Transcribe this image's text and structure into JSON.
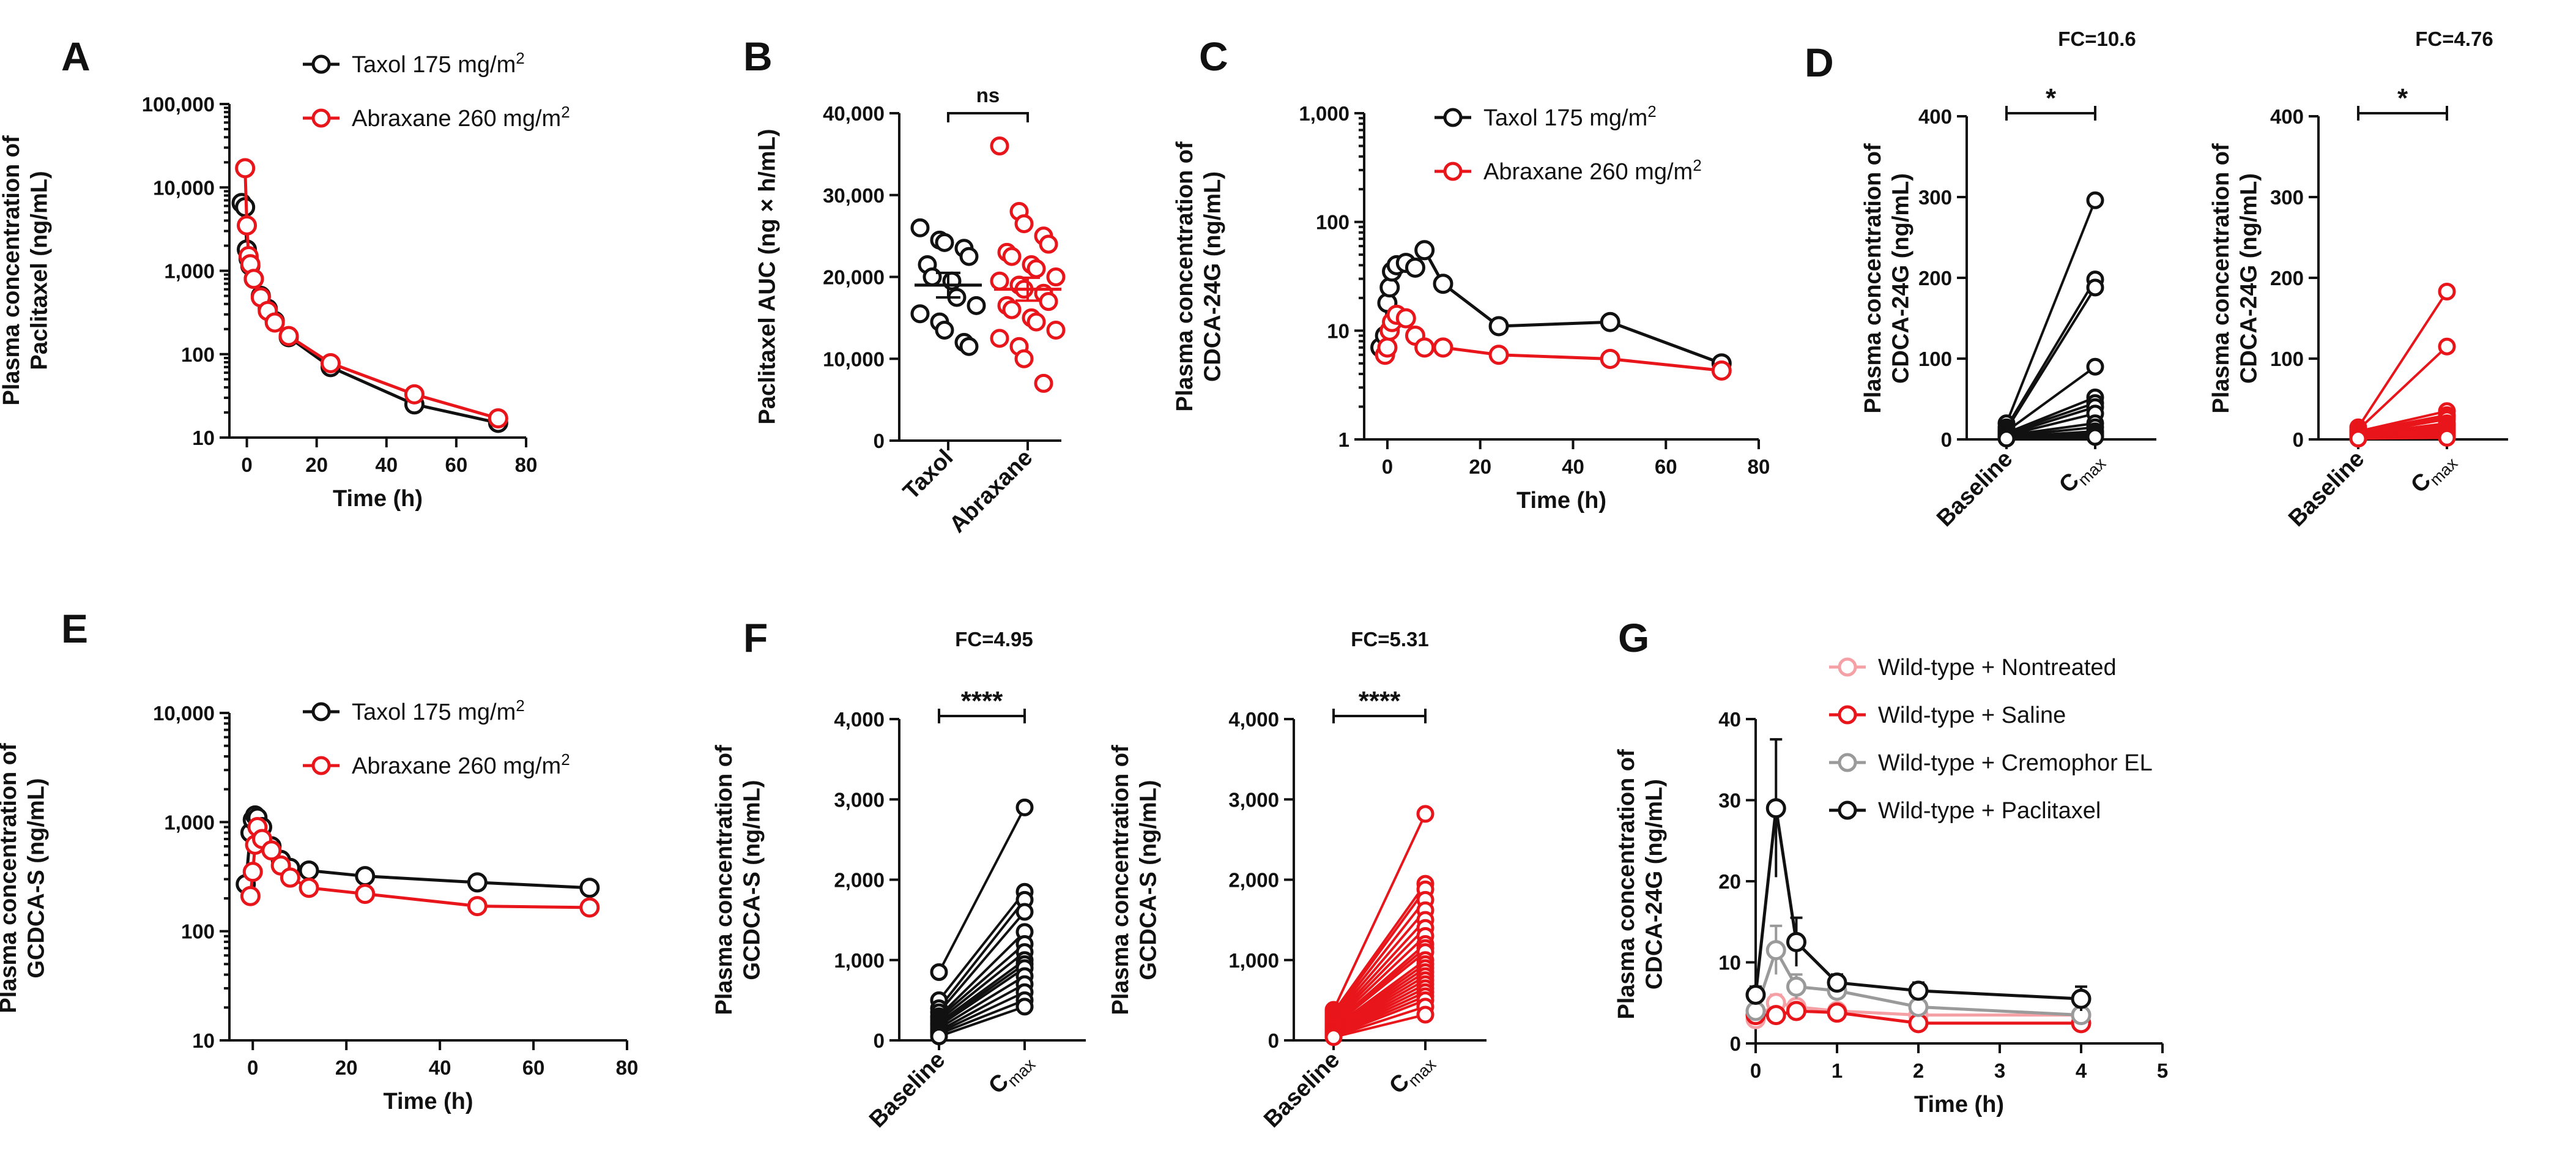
{
  "colors": {
    "black": "#111111",
    "red": "#e8151b",
    "gray": "#9a9a9a",
    "pink": "#f4a0a4"
  },
  "chart_data": [
    {
      "panel": "A",
      "type": "line",
      "yscale": "log",
      "ylabel": [
        "Plasma concentration of",
        "Paclitaxel (ng/mL)"
      ],
      "xlabel": "Time (h)",
      "xlim": [
        -5,
        80
      ],
      "xticks": [
        0,
        20,
        40,
        60,
        80
      ],
      "ylim": [
        10,
        100000
      ],
      "yticks": [
        10,
        100,
        1000,
        10000,
        100000
      ],
      "ytick_labels": [
        "10",
        "100",
        "1,000",
        "10,000",
        "100,000"
      ],
      "legend": [
        "Taxol 175 mg/m",
        "Abraxane 260 mg/m"
      ],
      "legend_sup": "2",
      "series": [
        {
          "name": "Taxol 175 mg/m2",
          "color": "black",
          "x": [
            -1.5,
            -0.5,
            0,
            0.5,
            1,
            2,
            4,
            6,
            8,
            12,
            24,
            48,
            72
          ],
          "y": [
            6500,
            5800,
            1800,
            1400,
            1150,
            800,
            500,
            350,
            250,
            160,
            70,
            25,
            15
          ]
        },
        {
          "name": "Abraxane 260 mg/m2",
          "color": "red",
          "x": [
            -0.5,
            0,
            0.5,
            1,
            2,
            4,
            6,
            8,
            12,
            24,
            48,
            72
          ],
          "y": [
            17000,
            3500,
            1500,
            1200,
            800,
            480,
            330,
            240,
            165,
            78,
            33,
            17
          ]
        }
      ]
    },
    {
      "panel": "B",
      "type": "scatter",
      "ylabel": [
        "Paclitaxel AUC (ng × h/mL)"
      ],
      "categories": [
        "Taxol",
        "Abraxane"
      ],
      "ylim": [
        0,
        40000
      ],
      "yticks": [
        0,
        10000,
        20000,
        30000,
        40000
      ],
      "ytick_labels": [
        "0",
        "10,000",
        "20,000",
        "30,000",
        "40,000"
      ],
      "significance": "ns",
      "groups": [
        {
          "name": "Taxol",
          "color": "black",
          "mean": 19000,
          "sem": 1500,
          "values": [
            26000,
            24500,
            24200,
            23500,
            22500,
            21500,
            20000,
            19500,
            17500,
            16500,
            15500,
            14500,
            13500,
            12000,
            11500
          ]
        },
        {
          "name": "Abraxane",
          "color": "red",
          "mean": 18500,
          "sem": 1400,
          "values": [
            36000,
            28000,
            26500,
            25000,
            24000,
            23000,
            22500,
            21500,
            21000,
            20000,
            19500,
            19000,
            18500,
            18000,
            17000,
            16500,
            16000,
            15000,
            14500,
            13500,
            12500,
            11500,
            10000,
            7000
          ]
        }
      ]
    },
    {
      "panel": "C",
      "type": "line",
      "yscale": "log",
      "ylabel": [
        "Plasma concentration of",
        "CDCA-24G (ng/mL)"
      ],
      "xlabel": "Time (h)",
      "xlim": [
        -5,
        80
      ],
      "xticks": [
        0,
        20,
        40,
        60,
        80
      ],
      "ylim": [
        1,
        1000
      ],
      "yticks": [
        1,
        10,
        100,
        1000
      ],
      "ytick_labels": [
        "1",
        "10",
        "100",
        "1,000"
      ],
      "legend": [
        "Taxol 175 mg/m",
        "Abraxane 260 mg/m"
      ],
      "legend_sup": "2",
      "series": [
        {
          "name": "Taxol 175 mg/m2",
          "color": "black",
          "x": [
            -1.5,
            -0.5,
            0,
            0.5,
            1,
            2,
            4,
            6,
            8,
            12,
            24,
            48,
            72
          ],
          "y": [
            7,
            9,
            18,
            25,
            35,
            40,
            42,
            38,
            55,
            27,
            11,
            12,
            5
          ]
        },
        {
          "name": "Abraxane 260 mg/m2",
          "color": "red",
          "x": [
            -0.5,
            0,
            0.5,
            1,
            2,
            4,
            6,
            8,
            12,
            24,
            48,
            72
          ],
          "y": [
            6,
            7,
            10,
            12,
            14,
            13,
            9,
            7,
            7,
            6,
            5.5,
            4.3
          ]
        }
      ]
    },
    {
      "panel": "D",
      "type": "paired",
      "ylabel": [
        "Plasma concentration of",
        "CDCA-24G (ng/mL)"
      ],
      "ylim": [
        0,
        400
      ],
      "yticks": [
        0,
        100,
        200,
        300,
        400
      ],
      "ytick_labels": [
        "0",
        "100",
        "200",
        "300",
        "400"
      ],
      "subplots": [
        {
          "title": "FC=10.6",
          "significance": "*",
          "color": "black",
          "baseline": [
            20,
            15,
            12,
            10,
            8,
            8,
            6,
            5,
            5,
            4,
            3,
            2,
            2,
            1
          ],
          "cmax": [
            296,
            198,
            188,
            90,
            52,
            45,
            40,
            32,
            20,
            15,
            10,
            8,
            5,
            3
          ]
        },
        {
          "title": "FC=4.76",
          "significance": "*",
          "color": "red",
          "baseline": [
            15,
            12,
            10,
            9,
            8,
            6,
            6,
            5,
            4,
            3,
            2,
            2,
            1,
            1,
            1
          ],
          "cmax": [
            183,
            115,
            35,
            30,
            28,
            25,
            20,
            18,
            15,
            12,
            10,
            8,
            5,
            3,
            2
          ]
        }
      ]
    },
    {
      "panel": "E",
      "type": "line",
      "yscale": "log",
      "ylabel": [
        "Plasma concentration of",
        "GCDCA-S (ng/mL)"
      ],
      "xlabel": "Time (h)",
      "xlim": [
        -5,
        80
      ],
      "xticks": [
        0,
        20,
        40,
        60,
        80
      ],
      "ylim": [
        10,
        10000
      ],
      "yticks": [
        10,
        100,
        1000,
        10000
      ],
      "ytick_labels": [
        "10",
        "100",
        "1,000",
        "10,000"
      ],
      "legend": [
        "Taxol 175 mg/m",
        "Abraxane 260 mg/m"
      ],
      "legend_sup": "2",
      "series": [
        {
          "name": "Taxol 175 mg/m2",
          "color": "black",
          "x": [
            -1.5,
            -0.5,
            0,
            0.5,
            1,
            2,
            4,
            6,
            8,
            12,
            24,
            48,
            72
          ],
          "y": [
            270,
            800,
            1050,
            1150,
            1100,
            900,
            600,
            450,
            380,
            360,
            320,
            280,
            250
          ]
        },
        {
          "name": "Abraxane 260 mg/m2",
          "color": "red",
          "x": [
            -0.5,
            0,
            0.5,
            1,
            2,
            4,
            6,
            8,
            12,
            24,
            48,
            72
          ],
          "y": [
            210,
            350,
            620,
            900,
            700,
            550,
            400,
            310,
            250,
            220,
            170,
            165
          ]
        }
      ]
    },
    {
      "panel": "F",
      "type": "paired",
      "ylabel": [
        "Plasma concentration of",
        "GCDCA-S (ng/mL)"
      ],
      "ylim": [
        0,
        4000
      ],
      "yticks": [
        0,
        1000,
        2000,
        3000,
        4000
      ],
      "ytick_labels": [
        "0",
        "1,000",
        "2,000",
        "3,000",
        "4,000"
      ],
      "subplots": [
        {
          "title": "FC=4.95",
          "significance": "****",
          "color": "black",
          "baseline": [
            850,
            500,
            400,
            350,
            300,
            280,
            250,
            220,
            200,
            180,
            150,
            120,
            100,
            80,
            50
          ],
          "cmax": [
            2900,
            1850,
            1750,
            1600,
            1350,
            1200,
            1100,
            1000,
            950,
            900,
            800,
            700,
            600,
            500,
            420
          ]
        },
        {
          "title": "FC=5.31",
          "significance": "****",
          "color": "red",
          "baseline": [
            380,
            350,
            320,
            300,
            280,
            260,
            240,
            220,
            200,
            190,
            180,
            160,
            150,
            140,
            130,
            120,
            110,
            100,
            90,
            80,
            70,
            60,
            50,
            40
          ],
          "cmax": [
            2820,
            1950,
            1880,
            1750,
            1620,
            1500,
            1400,
            1300,
            1200,
            1150,
            1100,
            1000,
            950,
            900,
            850,
            800,
            750,
            700,
            650,
            600,
            550,
            500,
            420,
            320
          ]
        }
      ]
    },
    {
      "panel": "G",
      "type": "line",
      "ylabel": [
        "Plasma concentration of",
        "CDCA-24G (ng/mL)"
      ],
      "xlabel": "Time (h)",
      "xlim": [
        0,
        5
      ],
      "xticks": [
        0,
        1,
        2,
        3,
        4,
        5
      ],
      "ylim": [
        0,
        40
      ],
      "yticks": [
        0,
        10,
        20,
        30,
        40
      ],
      "ytick_labels": [
        "0",
        "10",
        "20",
        "30",
        "40"
      ],
      "legend": [
        "Wild-type + Nontreated",
        "Wild-type + Saline",
        "Wild-type + Cremophor EL",
        "Wild-type + Paclitaxel"
      ],
      "series": [
        {
          "name": "Wild-type + Nontreated",
          "color": "pink",
          "x": [
            0,
            0.25,
            0.5,
            1,
            2,
            4
          ],
          "y": [
            3,
            5,
            4.5,
            4,
            3.5,
            3.5
          ],
          "err": [
            0.5,
            1,
            0.8,
            0.6,
            0.5,
            0.5
          ]
        },
        {
          "name": "Wild-type + Saline",
          "color": "red",
          "x": [
            0,
            0.25,
            0.5,
            1,
            2,
            4
          ],
          "y": [
            3.5,
            3.5,
            4,
            3.8,
            2.5,
            2.5
          ],
          "err": [
            0.5,
            0.8,
            0.7,
            0.6,
            0.4,
            0.4
          ]
        },
        {
          "name": "Wild-type + Cremophor EL",
          "color": "gray",
          "x": [
            0,
            0.25,
            0.5,
            1,
            2,
            4
          ],
          "y": [
            4,
            11.5,
            7,
            6.5,
            4.5,
            3.5
          ],
          "err": [
            0.8,
            3,
            1.5,
            1,
            0.8,
            0.6
          ]
        },
        {
          "name": "Wild-type + Paclitaxel",
          "color": "black",
          "x": [
            0,
            0.25,
            0.5,
            1,
            2,
            4
          ],
          "y": [
            6,
            29,
            12.5,
            7.5,
            6.5,
            5.5
          ],
          "err": [
            1,
            8.5,
            3,
            1,
            1,
            1.5
          ]
        }
      ]
    }
  ]
}
